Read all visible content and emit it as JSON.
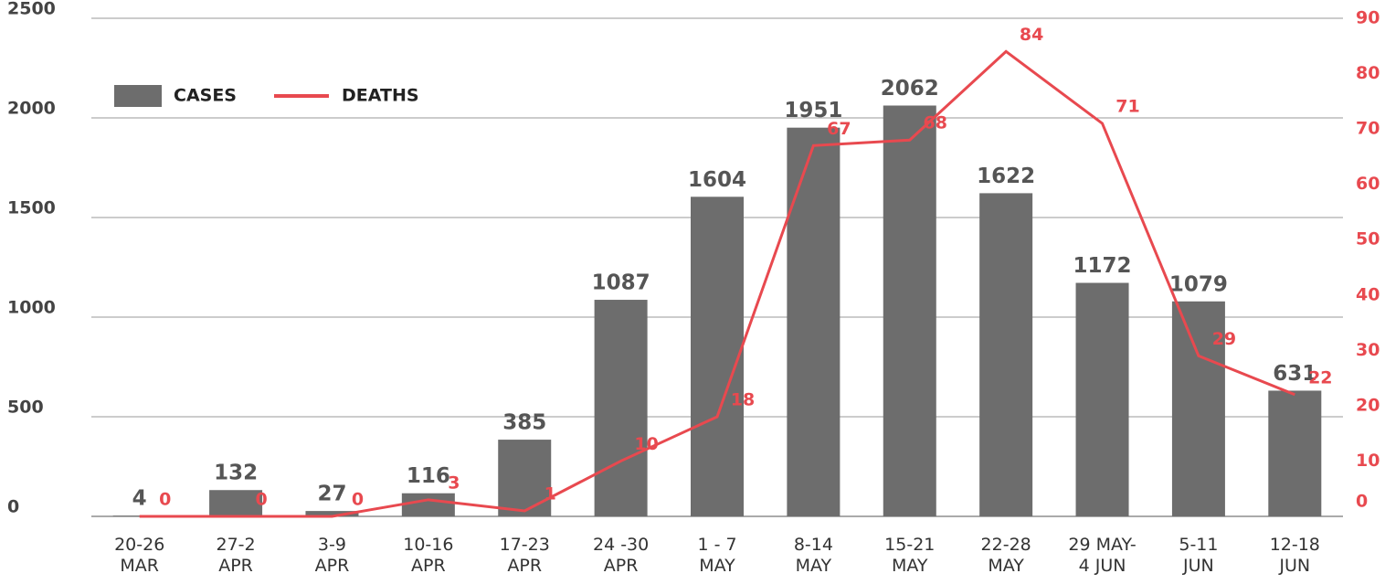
{
  "chart_data": {
    "type": "bar_line",
    "categories": [
      "20-26\nMAR",
      "27-2\nAPR",
      "3-9\nAPR",
      "10-16\nAPR",
      "17-23\nAPR",
      "24 -30\nAPR",
      "1 - 7\nMAY",
      "8-14\nMAY",
      "15-21\nMAY",
      "22-28\nMAY",
      "29 MAY-\n4 JUN",
      "5-11\nJUN",
      "12-18\nJUN"
    ],
    "series": [
      {
        "name": "CASES",
        "color": "#6d6d6d",
        "values": [
          4,
          132,
          27,
          116,
          385,
          1087,
          1604,
          1951,
          2062,
          1622,
          1172,
          1079,
          631
        ]
      },
      {
        "name": "DEATHS",
        "color": "#e8494f",
        "axis": "y2",
        "values": [
          0,
          0,
          0,
          3,
          1,
          10,
          18,
          67,
          68,
          84,
          71,
          29,
          22
        ]
      }
    ],
    "ylim": [
      0,
      2500
    ],
    "yticks": [
      0,
      500,
      1000,
      1500,
      2000,
      2500
    ],
    "y2lim": [
      0,
      90
    ],
    "y2ticks": [
      0,
      10,
      20,
      30,
      40,
      50,
      60,
      70,
      80,
      90
    ],
    "grid": true,
    "legend": "top-left"
  }
}
